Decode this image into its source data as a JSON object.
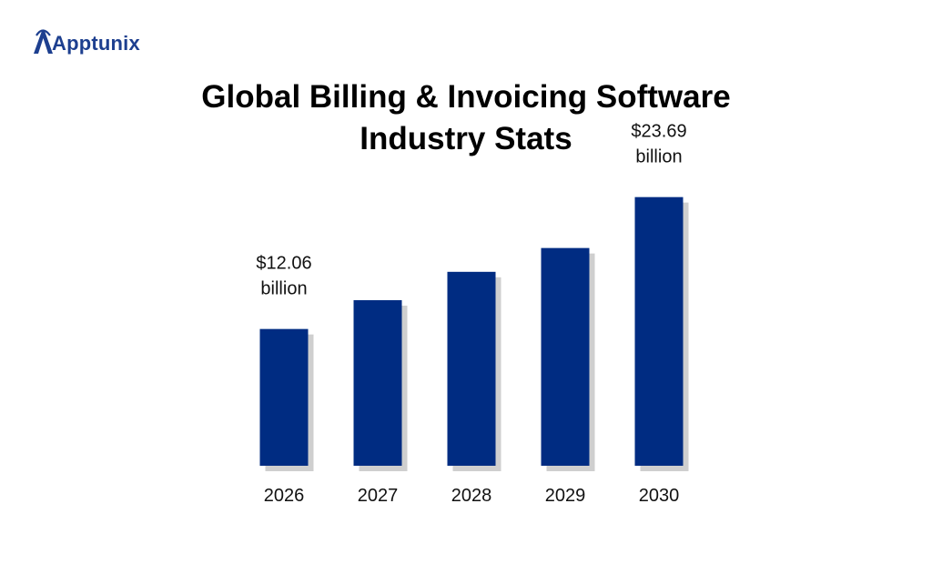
{
  "brand": {
    "name": "Apptunix"
  },
  "chart_data": {
    "type": "bar",
    "title_lines": [
      "Global Billing & Invoicing Software",
      "Industry Stats"
    ],
    "categories": [
      "2026",
      "2027",
      "2028",
      "2029",
      "2030"
    ],
    "values": [
      12.06,
      14.6,
      17.1,
      19.2,
      23.69
    ],
    "unit": "billion USD",
    "data_labels": [
      {
        "index": 0,
        "lines": [
          "$12.06",
          "billion"
        ]
      },
      {
        "index": 4,
        "lines": [
          "$23.69",
          "billion"
        ]
      }
    ],
    "ylim": [
      0,
      30
    ],
    "grid": false,
    "legend": "none",
    "colors": {
      "bar": "#002c82",
      "shadow": "#cfcfcf"
    }
  }
}
